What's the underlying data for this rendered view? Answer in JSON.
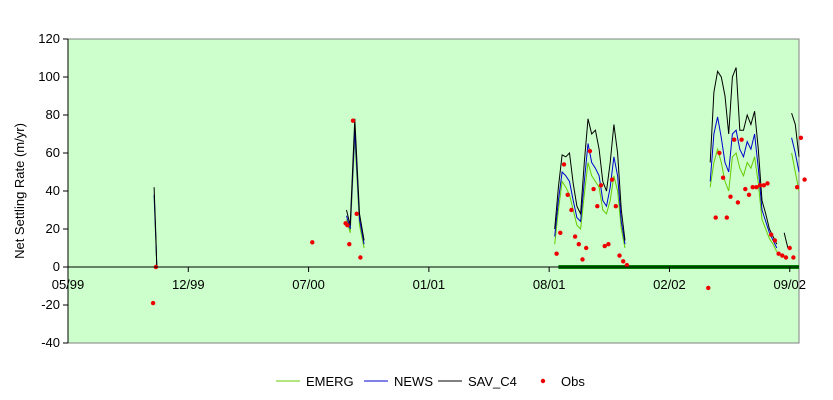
{
  "chart_data": {
    "type": "line",
    "title": "",
    "xlabel": "",
    "ylabel": "Net Settling Rate (m/yr)",
    "ylim": [
      -40,
      120
    ],
    "y_ticks": [
      -40,
      -20,
      0,
      20,
      40,
      60,
      80,
      100,
      120
    ],
    "x_tick_labels": [
      "05/99",
      "12/99",
      "07/00",
      "01/01",
      "08/01",
      "02/02",
      "09/02"
    ],
    "x_range_months": 39.5,
    "plot_background": "#ccffcc",
    "grid": false,
    "legend_position": "bottom",
    "baseline_bar": {
      "color": "#008000",
      "x_start_month": 26.5,
      "x_end_month": 39.5,
      "y": 0
    },
    "series": [
      {
        "name": "EMERG",
        "kind": "line",
        "color": "#66cc00",
        "segments": [
          [
            [
              4.65,
              38
            ],
            [
              4.75,
              12
            ],
            [
              4.8,
              0
            ]
          ],
          [
            [
              15.05,
              25
            ],
            [
              15.25,
              18
            ],
            [
              15.5,
              68
            ],
            [
              15.75,
              22
            ],
            [
              16.0,
              10
            ]
          ],
          [
            [
              26.3,
              12
            ],
            [
              26.5,
              30
            ],
            [
              26.7,
              45
            ],
            [
              26.9,
              42
            ],
            [
              27.1,
              38
            ],
            [
              27.3,
              30
            ],
            [
              27.5,
              22
            ],
            [
              27.7,
              20
            ],
            [
              27.9,
              38
            ],
            [
              28.1,
              55
            ],
            [
              28.3,
              48
            ],
            [
              28.5,
              45
            ],
            [
              28.7,
              42
            ],
            [
              28.9,
              30
            ],
            [
              29.1,
              28
            ],
            [
              29.3,
              35
            ],
            [
              29.5,
              48
            ],
            [
              29.7,
              40
            ],
            [
              29.9,
              20
            ],
            [
              30.1,
              10
            ]
          ],
          [
            [
              34.7,
              42
            ],
            [
              34.9,
              55
            ],
            [
              35.1,
              62
            ],
            [
              35.3,
              55
            ],
            [
              35.5,
              45
            ],
            [
              35.7,
              40
            ],
            [
              35.9,
              58
            ],
            [
              36.1,
              60
            ],
            [
              36.3,
              52
            ],
            [
              36.5,
              48
            ],
            [
              36.7,
              55
            ],
            [
              36.9,
              52
            ],
            [
              37.1,
              58
            ],
            [
              37.3,
              44
            ],
            [
              37.5,
              25
            ],
            [
              37.7,
              20
            ],
            [
              37.9,
              15
            ],
            [
              38.1,
              12
            ],
            [
              38.3,
              8
            ]
          ],
          [
            [
              39.1,
              60
            ],
            [
              39.3,
              50
            ],
            [
              39.5,
              40
            ]
          ]
        ]
      },
      {
        "name": "NEWS",
        "kind": "line",
        "color": "#0000cc",
        "segments": [
          [
            [
              4.65,
              38
            ],
            [
              4.75,
              14
            ],
            [
              4.8,
              0
            ]
          ],
          [
            [
              15.05,
              27
            ],
            [
              15.25,
              20
            ],
            [
              15.5,
              72
            ],
            [
              15.75,
              25
            ],
            [
              16.0,
              12
            ]
          ],
          [
            [
              26.3,
              16
            ],
            [
              26.5,
              35
            ],
            [
              26.7,
              50
            ],
            [
              26.9,
              48
            ],
            [
              27.1,
              45
            ],
            [
              27.3,
              35
            ],
            [
              27.5,
              26
            ],
            [
              27.7,
              24
            ],
            [
              27.9,
              45
            ],
            [
              28.1,
              65
            ],
            [
              28.3,
              55
            ],
            [
              28.5,
              52
            ],
            [
              28.7,
              48
            ],
            [
              28.9,
              35
            ],
            [
              29.1,
              32
            ],
            [
              29.3,
              42
            ],
            [
              29.5,
              58
            ],
            [
              29.7,
              48
            ],
            [
              29.9,
              24
            ],
            [
              30.1,
              12
            ]
          ],
          [
            [
              34.7,
              45
            ],
            [
              34.9,
              70
            ],
            [
              35.1,
              79
            ],
            [
              35.3,
              68
            ],
            [
              35.5,
              55
            ],
            [
              35.7,
              50
            ],
            [
              35.9,
              70
            ],
            [
              36.1,
              72
            ],
            [
              36.3,
              62
            ],
            [
              36.5,
              58
            ],
            [
              36.7,
              66
            ],
            [
              36.9,
              62
            ],
            [
              37.1,
              70
            ],
            [
              37.3,
              52
            ],
            [
              37.5,
              30
            ],
            [
              37.7,
              24
            ],
            [
              37.9,
              18
            ],
            [
              38.1,
              14
            ],
            [
              38.3,
              10
            ]
          ],
          [
            [
              39.1,
              68
            ],
            [
              39.3,
              60
            ],
            [
              39.5,
              50
            ]
          ]
        ]
      },
      {
        "name": "SAV_C4",
        "kind": "line",
        "color": "#000000",
        "segments": [
          [
            [
              4.65,
              42
            ],
            [
              4.75,
              16
            ],
            [
              4.8,
              0
            ]
          ],
          [
            [
              15.05,
              30
            ],
            [
              15.25,
              22
            ],
            [
              15.5,
              78
            ],
            [
              15.75,
              28
            ],
            [
              16.0,
              14
            ]
          ],
          [
            [
              26.3,
              20
            ],
            [
              26.5,
              42
            ],
            [
              26.7,
              59
            ],
            [
              26.9,
              58
            ],
            [
              27.1,
              60
            ],
            [
              27.3,
              44
            ],
            [
              27.5,
              32
            ],
            [
              27.7,
              28
            ],
            [
              27.9,
              55
            ],
            [
              28.1,
              78
            ],
            [
              28.3,
              70
            ],
            [
              28.5,
              72
            ],
            [
              28.7,
              62
            ],
            [
              28.9,
              45
            ],
            [
              29.1,
              40
            ],
            [
              29.3,
              55
            ],
            [
              29.5,
              75
            ],
            [
              29.7,
              60
            ],
            [
              29.9,
              30
            ],
            [
              30.1,
              14
            ]
          ],
          [
            [
              34.7,
              55
            ],
            [
              34.9,
              92
            ],
            [
              35.1,
              103
            ],
            [
              35.3,
              100
            ],
            [
              35.5,
              90
            ],
            [
              35.7,
              70
            ],
            [
              35.9,
              100
            ],
            [
              36.1,
              105
            ],
            [
              36.3,
              72
            ],
            [
              36.5,
              72
            ],
            [
              36.7,
              80
            ],
            [
              36.9,
              75
            ],
            [
              37.1,
              82
            ],
            [
              37.3,
              62
            ],
            [
              37.5,
              35
            ],
            [
              37.7,
              28
            ],
            [
              37.9,
              20
            ],
            [
              38.1,
              16
            ],
            [
              38.3,
              12
            ]
          ],
          [
            [
              38.7,
              18
            ],
            [
              38.8,
              14
            ],
            [
              38.9,
              10
            ]
          ],
          [
            [
              39.1,
              81
            ],
            [
              39.3,
              75
            ],
            [
              39.5,
              58
            ]
          ]
        ]
      },
      {
        "name": "Obs",
        "kind": "scatter",
        "color": "#ee0000",
        "points": [
          [
            4.6,
            -19
          ],
          [
            4.75,
            0
          ],
          [
            13.2,
            13
          ],
          [
            15.0,
            23
          ],
          [
            15.1,
            22
          ],
          [
            15.2,
            12
          ],
          [
            15.4,
            77
          ],
          [
            15.6,
            28
          ],
          [
            15.8,
            5
          ],
          [
            26.4,
            7
          ],
          [
            26.6,
            18
          ],
          [
            26.8,
            54
          ],
          [
            27.0,
            38
          ],
          [
            27.2,
            30
          ],
          [
            27.4,
            16
          ],
          [
            27.6,
            12
          ],
          [
            27.8,
            4
          ],
          [
            28.0,
            10
          ],
          [
            28.2,
            61
          ],
          [
            28.4,
            41
          ],
          [
            28.6,
            32
          ],
          [
            28.8,
            43
          ],
          [
            29.0,
            11
          ],
          [
            29.2,
            12
          ],
          [
            29.4,
            46
          ],
          [
            29.6,
            32
          ],
          [
            29.8,
            6
          ],
          [
            30.0,
            3
          ],
          [
            30.2,
            1
          ],
          [
            35.0,
            26
          ],
          [
            35.2,
            60
          ],
          [
            35.4,
            47
          ],
          [
            35.6,
            26
          ],
          [
            35.8,
            37
          ],
          [
            36.0,
            67
          ],
          [
            36.2,
            34
          ],
          [
            36.4,
            67
          ],
          [
            36.6,
            41
          ],
          [
            36.8,
            38
          ],
          [
            37.0,
            42
          ],
          [
            37.2,
            42
          ],
          [
            37.4,
            43
          ],
          [
            37.6,
            43
          ],
          [
            37.8,
            44
          ],
          [
            38.0,
            17
          ],
          [
            38.2,
            14
          ],
          [
            38.4,
            7
          ],
          [
            38.6,
            6
          ],
          [
            38.8,
            5
          ],
          [
            39.0,
            10
          ],
          [
            39.2,
            5
          ],
          [
            39.4,
            42
          ],
          [
            39.6,
            68
          ],
          [
            39.8,
            46
          ],
          [
            34.6,
            -11
          ]
        ]
      }
    ]
  }
}
